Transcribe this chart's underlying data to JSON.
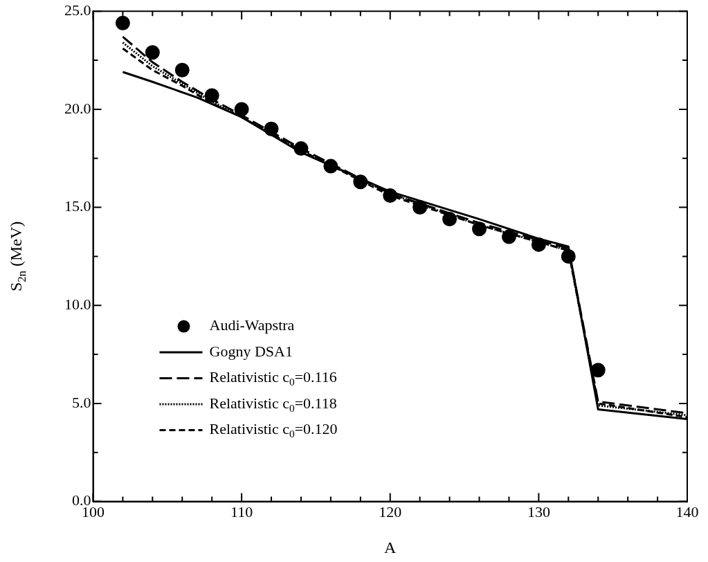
{
  "chart_data": {
    "type": "line",
    "xlabel": "A",
    "ylabel": "S$_{2n}$ (MeV)",
    "xlim": [
      100,
      140
    ],
    "xticks": [
      100,
      {
        "value": 102,
        "label": null
      },
      {
        "value": 104,
        "label": null
      },
      {
        "value": 106,
        "label": null
      },
      {
        "value": 108,
        "label": null
      },
      110,
      {
        "value": 112,
        "label": null
      },
      {
        "value": 114,
        "label": null
      },
      {
        "value": 116,
        "label": null
      },
      {
        "value": 118,
        "label": null
      },
      120,
      {
        "value": 122,
        "label": null
      },
      {
        "value": 124,
        "label": null
      },
      {
        "value": 126,
        "label": null
      },
      {
        "value": 128,
        "label": null
      },
      130,
      {
        "value": 132,
        "label": null
      },
      {
        "value": 134,
        "label": null
      },
      {
        "value": 136,
        "label": null
      },
      {
        "value": 138,
        "label": null
      },
      140
    ],
    "ylim": [
      0,
      25
    ],
    "yticks": [
      {
        "value": 0,
        "label": "0.0"
      },
      {
        "value": 2.5,
        "label": null
      },
      {
        "value": 5,
        "label": "5.0"
      },
      {
        "value": 7.5,
        "label": null
      },
      {
        "value": 10,
        "label": "10.0"
      },
      {
        "value": 12.5,
        "label": null
      },
      {
        "value": 15,
        "label": "15.0"
      },
      {
        "value": 17.5,
        "label": null
      },
      {
        "value": 20,
        "label": "20.0"
      },
      {
        "value": 22.5,
        "label": null
      },
      {
        "value": 25,
        "label": "25.0"
      }
    ],
    "grid": false,
    "legend": "bottom left",
    "series": [
      {
        "name": "Audi-Wapstra",
        "type": "scatter",
        "marker": "circle",
        "color": "#000000",
        "x": [
          102,
          104,
          106,
          108,
          110,
          112,
          114,
          116,
          118,
          120,
          122,
          124,
          126,
          128,
          130,
          132,
          134
        ],
        "values": [
          24.4,
          22.9,
          22.0,
          20.7,
          20.0,
          19.0,
          18.0,
          17.1,
          16.3,
          15.6,
          15.0,
          14.4,
          13.9,
          13.5,
          13.1,
          12.5,
          6.7
        ]
      },
      {
        "name": "Gogny DSA1",
        "type": "line",
        "line_style": "solid",
        "color": "#000000",
        "x": [
          102,
          104,
          107,
          110,
          114,
          120,
          126,
          130,
          132,
          134,
          140
        ],
        "values": [
          21.9,
          21.4,
          20.6,
          19.6,
          17.8,
          15.8,
          14.4,
          13.4,
          13.0,
          4.7,
          4.2
        ]
      },
      {
        "name": "Relativistic c$_{0}$=0.116",
        "type": "line",
        "line_style": "dashed",
        "color": "#000000",
        "x": [
          102,
          104,
          106,
          108,
          110,
          114,
          120,
          126,
          132,
          134,
          140
        ],
        "values": [
          23.7,
          22.4,
          21.4,
          20.5,
          19.7,
          18.0,
          15.7,
          14.2,
          12.9,
          5.1,
          4.5
        ]
      },
      {
        "name": "Relativistic c$_{0}$=0.118",
        "type": "line",
        "line_style": "dotted",
        "color": "#000000",
        "x": [
          102,
          104,
          106,
          108,
          110,
          114,
          120,
          126,
          132,
          134,
          140
        ],
        "values": [
          23.4,
          22.2,
          21.3,
          20.4,
          19.6,
          17.9,
          15.7,
          14.1,
          12.8,
          4.9,
          4.4
        ]
      },
      {
        "name": "Relativistic c$_{0}$=0.120",
        "type": "line",
        "line_style": "dashed",
        "color": "#000000",
        "x": [
          102,
          104,
          106,
          108,
          110,
          114,
          120,
          126,
          132,
          134,
          140
        ],
        "values": [
          23.1,
          22.0,
          21.2,
          20.3,
          19.6,
          17.9,
          15.6,
          14.1,
          12.8,
          5.0,
          4.3
        ]
      }
    ]
  }
}
